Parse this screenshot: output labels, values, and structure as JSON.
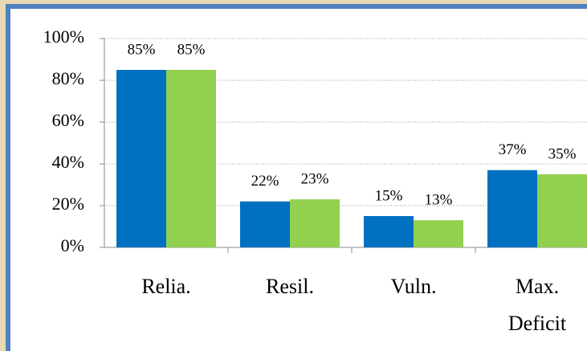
{
  "chart_data": {
    "type": "bar",
    "categories": [
      "Relia.",
      "Resil.",
      "Vuln.",
      "Max. Deficit"
    ],
    "series": [
      {
        "color": "#0070c0",
        "values": [
          85,
          22,
          15,
          37
        ],
        "value_labels": [
          "85%",
          "22%",
          "15%",
          "37%"
        ]
      },
      {
        "color": "#92d050",
        "values": [
          85,
          23,
          13,
          35
        ],
        "value_labels": [
          "85%",
          "23%",
          "13%",
          "35%"
        ]
      }
    ],
    "ylim": [
      0,
      100
    ],
    "yticks": [
      {
        "value": 0,
        "label": "0%"
      },
      {
        "value": 20,
        "label": "20%"
      },
      {
        "value": 40,
        "label": "40%"
      },
      {
        "value": 60,
        "label": "60%"
      },
      {
        "value": 80,
        "label": "80%"
      },
      {
        "value": 100,
        "label": "100%"
      }
    ],
    "grid": true
  }
}
